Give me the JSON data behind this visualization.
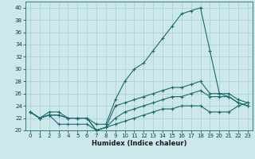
{
  "xlabel": "Humidex (Indice chaleur)",
  "background_color": "#cce8ec",
  "grid_color": "#aacccc",
  "line_color": "#1a6b6b",
  "xlim": [
    -0.5,
    23.5
  ],
  "ylim": [
    20,
    41
  ],
  "xticks": [
    0,
    1,
    2,
    3,
    4,
    5,
    6,
    7,
    8,
    9,
    10,
    11,
    12,
    13,
    14,
    15,
    16,
    17,
    18,
    19,
    20,
    21,
    22,
    23
  ],
  "yticks": [
    20,
    22,
    24,
    26,
    28,
    30,
    32,
    34,
    36,
    38,
    40
  ],
  "line1_x": [
    0,
    1,
    2,
    3,
    4,
    5,
    6,
    7,
    8,
    9,
    10,
    11,
    12,
    13,
    14,
    15,
    16,
    17,
    18,
    19,
    20,
    21,
    22,
    23
  ],
  "line1_y": [
    23,
    22,
    23,
    23,
    22,
    22,
    22,
    21,
    21,
    25,
    28,
    30,
    31,
    33,
    35,
    37,
    39,
    39.5,
    40,
    33,
    26,
    26,
    25,
    24.5
  ],
  "line2_x": [
    0,
    1,
    2,
    3,
    4,
    5,
    6,
    7,
    8,
    9,
    10,
    11,
    12,
    13,
    14,
    15,
    16,
    17,
    18,
    19,
    20,
    21,
    22,
    23
  ],
  "line2_y": [
    23,
    22,
    22.5,
    22.5,
    22,
    22,
    22,
    20,
    20.5,
    24,
    24.5,
    25,
    25.5,
    26,
    26.5,
    27,
    27,
    27.5,
    28,
    26,
    26,
    25.5,
    24.5,
    24
  ],
  "line3_x": [
    0,
    1,
    2,
    3,
    4,
    5,
    6,
    7,
    8,
    9,
    10,
    11,
    12,
    13,
    14,
    15,
    16,
    17,
    18,
    19,
    20,
    21,
    22,
    23
  ],
  "line3_y": [
    23,
    22,
    22.5,
    22.5,
    22,
    22,
    22,
    20,
    20.5,
    22,
    23,
    23.5,
    24,
    24.5,
    25,
    25.5,
    25.5,
    26,
    26.5,
    25.5,
    25.5,
    25.5,
    24.5,
    24
  ],
  "line4_x": [
    0,
    1,
    2,
    3,
    4,
    5,
    6,
    7,
    8,
    9,
    10,
    11,
    12,
    13,
    14,
    15,
    16,
    17,
    18,
    19,
    20,
    21,
    22,
    23
  ],
  "line4_y": [
    23,
    22,
    22.5,
    21,
    21,
    21,
    21,
    20,
    20.5,
    21,
    21.5,
    22,
    22.5,
    23,
    23.5,
    23.5,
    24,
    24,
    24,
    23,
    23,
    23,
    24,
    24.5
  ],
  "xlabel_fontsize": 6.0,
  "tick_fontsize": 5.0
}
